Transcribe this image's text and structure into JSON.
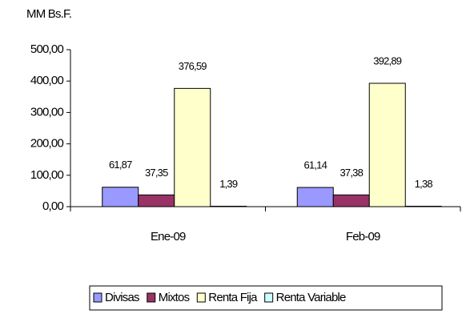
{
  "chart_data": {
    "type": "bar",
    "ylabel": "MM Bs.F.",
    "categories": [
      "Ene-09",
      "Feb-09"
    ],
    "series": [
      {
        "name": "Divisas",
        "color": "#9999ff",
        "values": [
          61.87,
          61.14
        ],
        "value_labels": [
          "61,87",
          "61,14"
        ]
      },
      {
        "name": "Mixtos",
        "color": "#993366",
        "values": [
          37.35,
          37.38
        ],
        "value_labels": [
          "37,35",
          "37,38"
        ]
      },
      {
        "name": "Renta Fija",
        "color": "#ffffcc",
        "values": [
          376.59,
          392.89
        ],
        "value_labels": [
          "376,59",
          "392,89"
        ]
      },
      {
        "name": "Renta Variable",
        "color": "#ccffff",
        "values": [
          1.39,
          1.38
        ],
        "value_labels": [
          "1,39",
          "1,38"
        ]
      }
    ],
    "ylim": [
      0,
      500
    ],
    "yticks": [
      {
        "value": 0,
        "label": "0,00"
      },
      {
        "value": 100,
        "label": "100,00"
      },
      {
        "value": 200,
        "label": "200,00"
      },
      {
        "value": 300,
        "label": "300,00"
      },
      {
        "value": 400,
        "label": "400,00"
      },
      {
        "value": 500,
        "label": "500,00"
      }
    ],
    "legend": "bottom"
  }
}
